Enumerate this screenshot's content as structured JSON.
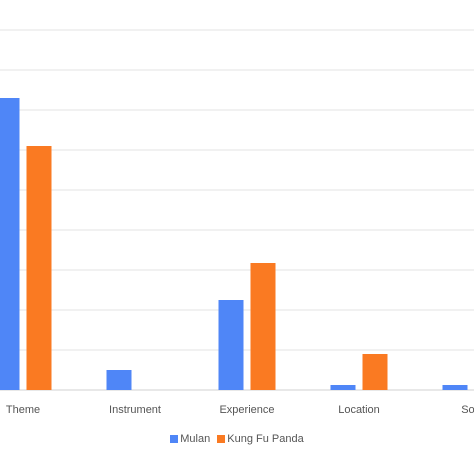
{
  "chart_data": {
    "type": "bar",
    "categories": [
      "Theme",
      "Instrument",
      "Experience",
      "Location",
      "Sou"
    ],
    "series": [
      {
        "name": "Mulan",
        "color": "#4f86f7",
        "values": [
          29.2,
          2.0,
          9.0,
          0.5,
          0.5
        ]
      },
      {
        "name": "Kung Fu Panda",
        "color": "#fa7a22",
        "values": [
          24.4,
          0,
          12.7,
          3.6,
          0
        ]
      }
    ],
    "ylim": [
      0,
      40
    ],
    "grid": true,
    "legend_position": "bottom"
  }
}
